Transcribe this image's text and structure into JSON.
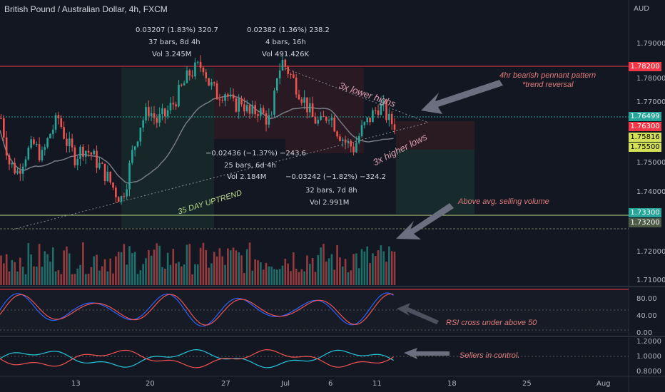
{
  "title": "British Pound / Australian Dollar, 4h, FXCM",
  "currency": "AUD",
  "colors": {
    "background": "#131722",
    "up": "#26a69a",
    "down": "#ef5350",
    "resistance": "#f23645",
    "support": "#b9d98a",
    "annotation": "#e07b7b",
    "rsi": "#2962ff",
    "rsi_ma": "#ef5350"
  },
  "price_labels": [
    "1.79000",
    "1.78000",
    "1.77000",
    "1.75000",
    "1.74000",
    "1.72000",
    "1.71000"
  ],
  "price_tags": [
    {
      "label": "1.78200",
      "color": "#f23645",
      "text_color": "#ffffff"
    },
    {
      "label": "1.76499",
      "color": "#26a69a",
      "text_color": "#ffffff"
    },
    {
      "label": "1.76300",
      "color": "#f23645",
      "text_color": "#ffffff"
    },
    {
      "label": "1.75816",
      "color": "#d4e157",
      "text_color": "#000000"
    },
    {
      "label": "1.75500",
      "color": "#d4e157",
      "text_color": "#000000"
    },
    {
      "label": "1.73300",
      "color": "#26a69a",
      "text_color": "#ffffff"
    },
    {
      "label": "1.73200",
      "color": "#4c5a45",
      "text_color": "#ffffff"
    }
  ],
  "rsi_labels": [
    "80.00",
    "40.00",
    "0.00"
  ],
  "ratio_labels": [
    "1.2000",
    "1.0000",
    "0.8000"
  ],
  "x_labels": [
    "13",
    "20",
    "27",
    "Jul",
    "6",
    "11",
    "18",
    "25",
    "Aug"
  ],
  "measure_boxes": [
    {
      "line1": "0.03207 (1.83%) 320.7",
      "line2": "37 bars, 8d 4h",
      "line3": "Vol 3.245M"
    },
    {
      "line1": "0.02382 (1.36%) 238.2",
      "line2": "4 bars, 16h",
      "line3": "Vol 491.426K"
    },
    {
      "line1": "−0.02436 (−1.37%) −243.6",
      "line2": "25 bars, 6d 4h",
      "line3": "Vol 2.184M"
    },
    {
      "line1": "−0.03242 (−1.82%) −324.2",
      "line2": "32 bars, 7d 8h",
      "line3": "Vol 2.991M"
    }
  ],
  "annotations": {
    "lower_highs": "3x lower highs",
    "higher_lows": "3x higher lows",
    "uptrend": "35 DAY UPTREND",
    "pennant_line1": "4hr bearish pennant pattern",
    "pennant_line2": "*trend reversal",
    "selling_volume": "Above avg. selling volume",
    "rsi_cross": "RSI cross under above 50",
    "sellers": "Sellers in control."
  },
  "chart_data": {
    "type": "candlestick",
    "title": "British Pound / Australian Dollar, 4h, FXCM",
    "y_axis": {
      "unit": "AUD",
      "range": [
        1.705,
        1.795
      ]
    },
    "resistance": 1.782,
    "support_levels": [
      1.733,
      1.732
    ],
    "last_price": 1.765,
    "close_path": [
      [
        0,
        1.76
      ],
      [
        3,
        1.745
      ],
      [
        6,
        1.742
      ],
      [
        9,
        1.748
      ],
      [
        12,
        1.751
      ],
      [
        15,
        1.747
      ],
      [
        18,
        1.755
      ],
      [
        21,
        1.76
      ],
      [
        24,
        1.752
      ],
      [
        27,
        1.747
      ],
      [
        30,
        1.75
      ],
      [
        33,
        1.748
      ],
      [
        36,
        1.744
      ],
      [
        39,
        1.74
      ],
      [
        42,
        1.735
      ],
      [
        44,
        1.733
      ],
      [
        46,
        1.739
      ],
      [
        48,
        1.748
      ],
      [
        51,
        1.758
      ],
      [
        54,
        1.763
      ],
      [
        57,
        1.759
      ],
      [
        60,
        1.761
      ],
      [
        63,
        1.765
      ],
      [
        66,
        1.77
      ],
      [
        69,
        1.775
      ],
      [
        72,
        1.777
      ],
      [
        74,
        1.778
      ],
      [
        76,
        1.772
      ],
      [
        79,
        1.768
      ],
      [
        82,
        1.769
      ],
      [
        85,
        1.764
      ],
      [
        88,
        1.766
      ],
      [
        91,
        1.761
      ],
      [
        94,
        1.763
      ],
      [
        97,
        1.76
      ],
      [
        99,
        1.759
      ],
      [
        101,
        1.775
      ],
      [
        103,
        1.779
      ],
      [
        105,
        1.776
      ],
      [
        108,
        1.771
      ],
      [
        111,
        1.766
      ],
      [
        114,
        1.76
      ],
      [
        117,
        1.758
      ],
      [
        120,
        1.762
      ],
      [
        123,
        1.756
      ],
      [
        126,
        1.752
      ],
      [
        129,
        1.75
      ],
      [
        132,
        1.756
      ],
      [
        135,
        1.76
      ],
      [
        138,
        1.764
      ],
      [
        140,
        1.763
      ],
      [
        142,
        1.759
      ],
      [
        144,
        1.758
      ]
    ],
    "rsi": {
      "levels": [
        80,
        40,
        0
      ],
      "range": [
        0,
        100
      ]
    },
    "ratio": {
      "levels": [
        1.2,
        1.0,
        0.8
      ],
      "range": [
        0.75,
        1.3
      ]
    }
  }
}
